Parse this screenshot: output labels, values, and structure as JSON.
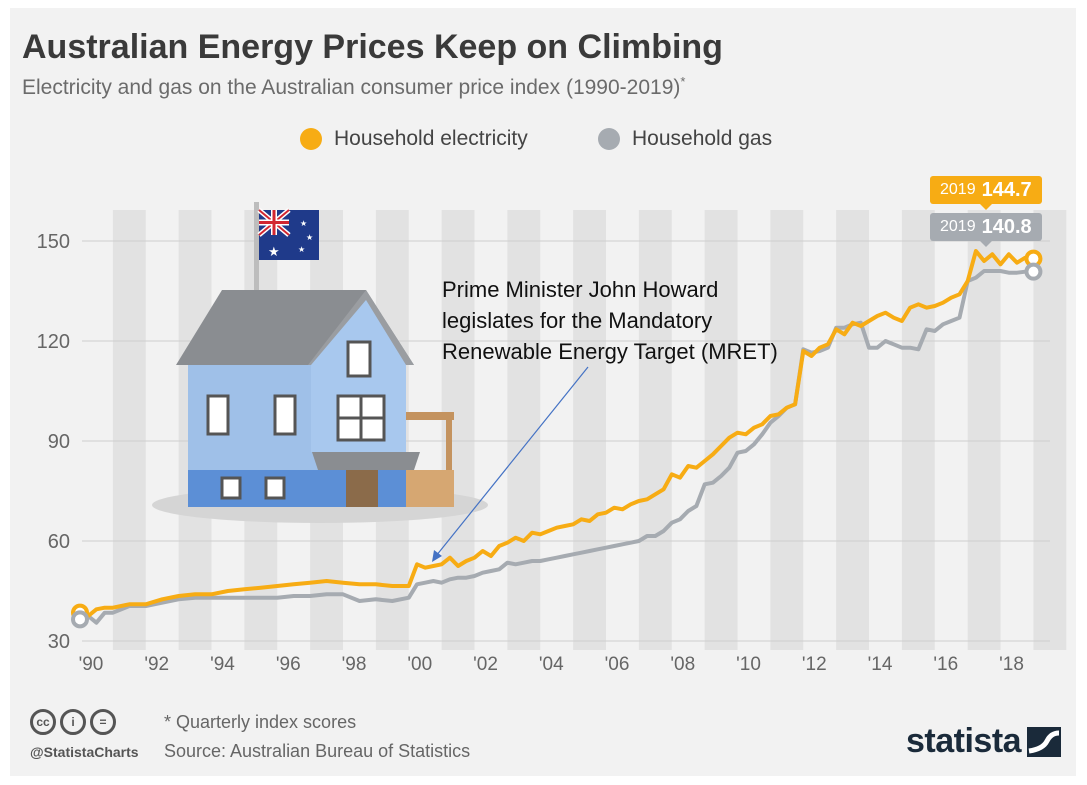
{
  "title": "Australian Energy Prices Keep on Climbing",
  "subtitle": "Electricity and gas on the Australian consumer price index (1990-2019)",
  "subtitle_mark": "*",
  "legend": [
    {
      "label": "Household electricity",
      "color": "#f7ac14"
    },
    {
      "label": "Household gas",
      "color": "#a6abb1"
    }
  ],
  "callouts": {
    "electricity": {
      "year": "2019",
      "value": "144.7"
    },
    "gas": {
      "year": "2019",
      "value": "140.8"
    }
  },
  "annotation": {
    "text": "Prime Minister John Howard\nlegislates for the Mandatory\nRenewable Energy Target (MRET)"
  },
  "footer": {
    "note": "* Quarterly index scores",
    "source": "Source: Australian Bureau of Statistics",
    "handle": "@StatistaCharts",
    "brand": "statista",
    "license_icons": [
      "cc-icon",
      "by-icon",
      "nd-icon"
    ]
  },
  "chart_data": {
    "type": "line",
    "x_tick_labels": [
      "'90",
      "'92",
      "'94",
      "'96",
      "'98",
      "'00",
      "'02",
      "'04",
      "'06",
      "'08",
      "'10",
      "'12",
      "'14",
      "'16",
      "'18"
    ],
    "y_ticks": [
      30,
      60,
      90,
      120,
      150
    ],
    "ylim": [
      30,
      160
    ],
    "xlim": [
      1990,
      2019.2
    ],
    "series": [
      {
        "name": "Household electricity",
        "color": "#f7ac14",
        "x": [
          1990,
          1990.25,
          1990.5,
          1990.75,
          1991,
          1991.5,
          1992,
          1992.5,
          1993,
          1993.5,
          1994,
          1994.5,
          1995,
          1995.5,
          1996,
          1996.5,
          1997,
          1997.5,
          1998,
          1998.5,
          1999,
          1999.5,
          2000,
          2000.25,
          2000.5,
          2000.75,
          2001,
          2001.25,
          2001.5,
          2001.75,
          2002,
          2002.25,
          2002.5,
          2002.75,
          2003,
          2003.25,
          2003.5,
          2003.75,
          2004,
          2004.25,
          2004.5,
          2004.75,
          2005,
          2005.25,
          2005.5,
          2005.75,
          2006,
          2006.25,
          2006.5,
          2006.75,
          2007,
          2007.25,
          2007.5,
          2007.75,
          2008,
          2008.25,
          2008.5,
          2008.75,
          2009,
          2009.25,
          2009.5,
          2009.75,
          2010,
          2010.25,
          2010.5,
          2010.75,
          2011,
          2011.25,
          2011.5,
          2011.75,
          2012,
          2012.25,
          2012.5,
          2012.75,
          2013,
          2013.25,
          2013.5,
          2013.75,
          2014,
          2014.25,
          2014.5,
          2014.75,
          2015,
          2015.25,
          2015.5,
          2015.75,
          2016,
          2016.25,
          2016.5,
          2016.75,
          2017,
          2017.25,
          2017.5,
          2017.75,
          2018,
          2018.25,
          2018.5,
          2018.75,
          2019
        ],
        "values": [
          38.5,
          37.5,
          39.5,
          40,
          40,
          41,
          41,
          42.5,
          43.5,
          44,
          44,
          45,
          45.5,
          46,
          46.5,
          47,
          47.5,
          48,
          47.5,
          47,
          47,
          46.5,
          46.5,
          53,
          52,
          52.5,
          53,
          55,
          52.5,
          54,
          55,
          57,
          55.5,
          58.5,
          59.5,
          61,
          60,
          62.5,
          62,
          63,
          64,
          64.5,
          65,
          66.5,
          66,
          68,
          68.5,
          70,
          69.5,
          71,
          72,
          72.5,
          74,
          75.5,
          80,
          79,
          82.5,
          82,
          84,
          86,
          88.5,
          91,
          92.5,
          92,
          94,
          95,
          97.5,
          98,
          100,
          101,
          117,
          115.5,
          118,
          119,
          123.5,
          122,
          125.5,
          124.5,
          126,
          127.5,
          128.5,
          127,
          126,
          130,
          131,
          130,
          130.5,
          131.5,
          133,
          134,
          138,
          147,
          144,
          146,
          143,
          146,
          143.5,
          145,
          144.7
        ]
      },
      {
        "name": "Household gas",
        "color": "#a6abb1",
        "x": [
          1990,
          1990.25,
          1990.5,
          1990.75,
          1991,
          1991.5,
          1992,
          1992.5,
          1993,
          1993.5,
          1994,
          1994.5,
          1995,
          1995.5,
          1996,
          1996.5,
          1997,
          1997.5,
          1998,
          1998.5,
          1999,
          1999.5,
          2000,
          2000.25,
          2000.5,
          2000.75,
          2001,
          2001.25,
          2001.5,
          2001.75,
          2002,
          2002.25,
          2002.5,
          2002.75,
          2003,
          2003.25,
          2003.5,
          2003.75,
          2004,
          2004.25,
          2004.5,
          2004.75,
          2005,
          2005.25,
          2005.5,
          2005.75,
          2006,
          2006.25,
          2006.5,
          2006.75,
          2007,
          2007.25,
          2007.5,
          2007.75,
          2008,
          2008.25,
          2008.5,
          2008.75,
          2009,
          2009.25,
          2009.5,
          2009.75,
          2010,
          2010.25,
          2010.5,
          2010.75,
          2011,
          2011.25,
          2011.5,
          2011.75,
          2012,
          2012.25,
          2012.5,
          2012.75,
          2013,
          2013.25,
          2013.5,
          2013.75,
          2014,
          2014.25,
          2014.5,
          2014.75,
          2015,
          2015.25,
          2015.5,
          2015.75,
          2016,
          2016.25,
          2016.5,
          2016.75,
          2017,
          2017.25,
          2017.5,
          2017.75,
          2018,
          2018.25,
          2018.5,
          2018.75,
          2019
        ],
        "values": [
          36.5,
          37.5,
          35.5,
          38.5,
          38.5,
          40.5,
          40.5,
          41.5,
          42.5,
          43,
          43,
          43,
          43,
          43,
          43,
          43.5,
          43.5,
          44,
          44,
          42,
          42.5,
          42,
          43,
          47,
          47.5,
          48,
          47.5,
          48.5,
          49,
          49,
          49.5,
          50.5,
          51,
          51.5,
          53.5,
          53,
          53.5,
          54,
          54,
          54.5,
          55,
          55.5,
          56,
          56.5,
          57,
          57.5,
          58,
          58.5,
          59,
          59.5,
          60,
          61.5,
          61.5,
          63,
          65.5,
          66.5,
          69,
          70.5,
          77,
          77.5,
          79.5,
          82,
          86.5,
          87,
          89,
          92,
          95.5,
          97.5,
          100,
          101,
          117.5,
          116.5,
          117,
          118,
          124,
          124,
          125,
          125.5,
          118,
          118,
          120,
          119,
          118,
          118,
          117.5,
          123.5,
          123,
          125,
          126,
          127,
          138,
          139,
          141,
          141,
          141,
          140.5,
          140.5,
          140.8,
          140.8
        ]
      }
    ],
    "highlight": [
      {
        "series": "Household electricity",
        "x": 2019,
        "value": 144.7
      },
      {
        "series": "Household gas",
        "x": 2019,
        "value": 140.8
      }
    ],
    "annotation_point": {
      "x": 2000.25,
      "value": 53
    },
    "grid": "alternating vertical bands, horizontal gridlines"
  }
}
